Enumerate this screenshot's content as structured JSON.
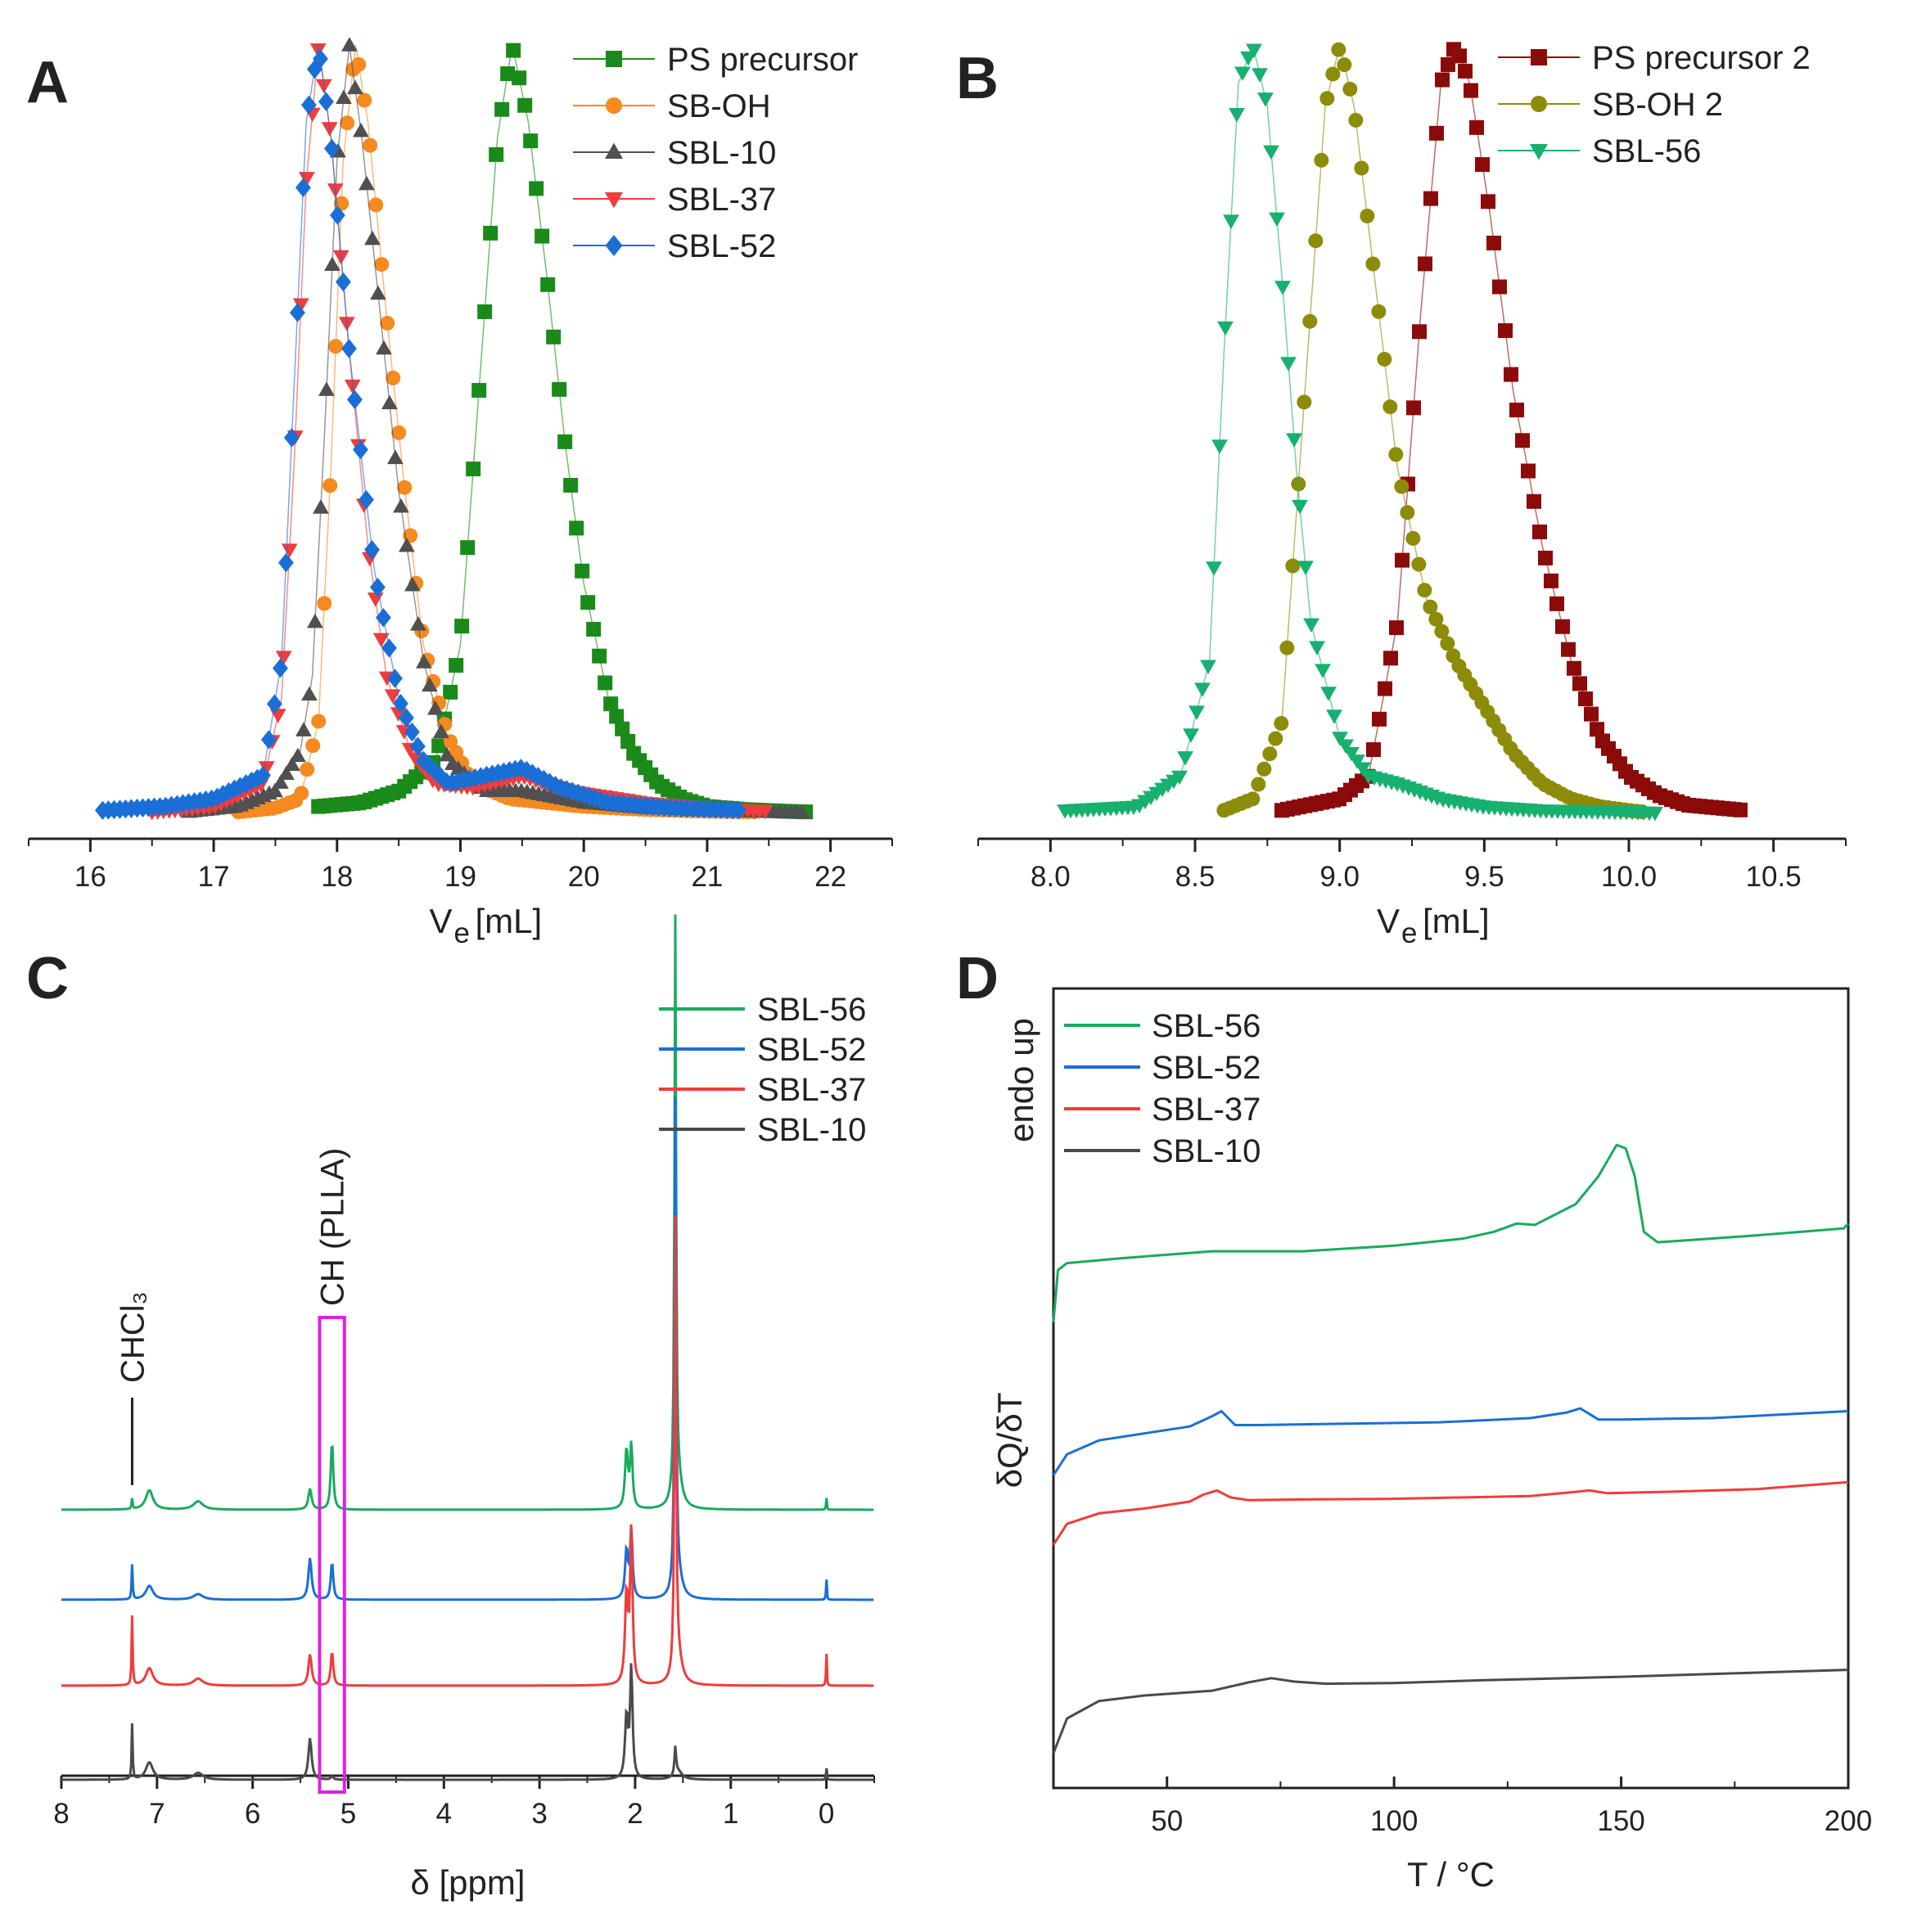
{
  "chart_data": [
    {
      "panel": "A",
      "type": "scatter",
      "xlabel": "V",
      "xlabel_subscript": "e",
      "xlabel_unit": "[mL]",
      "xlim": [
        15.5,
        22.5
      ],
      "ylim": [
        0,
        1
      ],
      "xticks": [
        16,
        17,
        18,
        19,
        20,
        21,
        22
      ],
      "legend_position": "top-right",
      "series": [
        {
          "name": "PS precursor",
          "color": "#1a8a1a",
          "marker": "square",
          "x": [
            17.85,
            18.2,
            18.5,
            18.8,
            19.0,
            19.15,
            19.3,
            19.42,
            19.55,
            19.7,
            19.85,
            20.0,
            20.2,
            20.4,
            20.6,
            20.8,
            21.0,
            21.3,
            21.6,
            21.8
          ],
          "y": [
            0.01,
            0.015,
            0.03,
            0.07,
            0.22,
            0.55,
            0.88,
            1.0,
            0.9,
            0.7,
            0.48,
            0.3,
            0.15,
            0.08,
            0.04,
            0.02,
            0.01,
            0.006,
            0.004,
            0.003
          ]
        },
        {
          "name": "SB-OH",
          "color": "#f58a1f",
          "marker": "circle",
          "x": [
            17.2,
            17.5,
            17.7,
            17.85,
            17.95,
            18.05,
            18.15,
            18.25,
            18.4,
            18.55,
            18.7,
            18.9,
            19.1,
            19.4,
            19.7,
            20.0,
            20.5,
            21.0,
            21.4
          ],
          "y": [
            0.003,
            0.008,
            0.02,
            0.12,
            0.45,
            0.85,
            1.0,
            0.9,
            0.65,
            0.42,
            0.22,
            0.1,
            0.04,
            0.02,
            0.015,
            0.01,
            0.006,
            0.004,
            0.003
          ]
        },
        {
          "name": "SBL-10",
          "color": "#505050",
          "marker": "triangle-up",
          "x": [
            16.8,
            17.2,
            17.5,
            17.7,
            17.8,
            17.9,
            18.0,
            18.1,
            18.2,
            18.35,
            18.5,
            18.7,
            18.9,
            19.2,
            19.5,
            20.0,
            20.5,
            21.0,
            21.5,
            21.8
          ],
          "y": [
            0.003,
            0.01,
            0.03,
            0.08,
            0.18,
            0.5,
            0.85,
            1.0,
            0.88,
            0.65,
            0.42,
            0.2,
            0.07,
            0.03,
            0.03,
            0.015,
            0.008,
            0.005,
            0.003,
            0.002
          ]
        },
        {
          "name": "SBL-37",
          "color": "#f03c3c",
          "marker": "triangle-down",
          "x": [
            16.5,
            17.0,
            17.4,
            17.55,
            17.65,
            17.75,
            17.85,
            17.95,
            18.1,
            18.25,
            18.4,
            18.6,
            18.8,
            19.1,
            19.5,
            19.9,
            20.5,
            21.0,
            21.5
          ],
          "y": [
            0.003,
            0.01,
            0.04,
            0.15,
            0.45,
            0.82,
            1.0,
            0.88,
            0.6,
            0.35,
            0.18,
            0.08,
            0.04,
            0.035,
            0.05,
            0.03,
            0.015,
            0.008,
            0.004
          ]
        },
        {
          "name": "SBL-52",
          "color": "#1a6fd6",
          "marker": "diamond",
          "x": [
            16.1,
            16.6,
            17.0,
            17.4,
            17.55,
            17.65,
            17.75,
            17.85,
            17.95,
            18.1,
            18.3,
            18.5,
            18.7,
            18.9,
            19.2,
            19.5,
            19.8,
            20.2,
            20.7,
            21.3
          ],
          "y": [
            0.005,
            0.01,
            0.02,
            0.05,
            0.2,
            0.55,
            0.9,
            1.0,
            0.88,
            0.6,
            0.32,
            0.15,
            0.07,
            0.04,
            0.05,
            0.06,
            0.035,
            0.015,
            0.008,
            0.005
          ]
        }
      ]
    },
    {
      "panel": "B",
      "type": "scatter",
      "xlabel": "V",
      "xlabel_subscript": "e",
      "xlabel_unit": "[mL]",
      "xlim": [
        7.75,
        10.75
      ],
      "ylim": [
        0,
        1
      ],
      "xticks": [
        "8.0",
        "8.5",
        "9.0",
        "9.5",
        "10.0",
        "10.5"
      ],
      "legend_position": "top-right",
      "series": [
        {
          "name": "PS precursor 2",
          "color": "#8b0a0a",
          "marker": "square",
          "x": [
            8.8,
            9.0,
            9.1,
            9.2,
            9.28,
            9.35,
            9.4,
            9.45,
            9.52,
            9.6,
            9.7,
            9.8,
            9.9,
            10.0,
            10.1,
            10.2,
            10.4
          ],
          "y": [
            0.005,
            0.02,
            0.05,
            0.25,
            0.65,
            0.95,
            1.0,
            0.95,
            0.78,
            0.55,
            0.35,
            0.2,
            0.1,
            0.05,
            0.025,
            0.012,
            0.005
          ]
        },
        {
          "name": "SB-OH 2",
          "color": "#8c8c0a",
          "marker": "circle",
          "x": [
            8.6,
            8.7,
            8.8,
            8.88,
            8.95,
            9.0,
            9.05,
            9.12,
            9.2,
            9.3,
            9.4,
            9.5,
            9.6,
            9.7,
            9.8,
            9.9,
            10.0,
            10.05
          ],
          "y": [
            0.005,
            0.02,
            0.12,
            0.55,
            0.92,
            1.0,
            0.92,
            0.7,
            0.45,
            0.28,
            0.2,
            0.14,
            0.08,
            0.04,
            0.02,
            0.01,
            0.005,
            0.003
          ]
        },
        {
          "name": "SBL-56",
          "color": "#17b070",
          "marker": "triangle-down",
          "x": [
            8.05,
            8.3,
            8.45,
            8.55,
            8.6,
            8.65,
            8.7,
            8.75,
            8.8,
            8.85,
            8.9,
            9.0,
            9.1,
            9.2,
            9.35,
            9.5,
            9.7,
            10.0,
            10.1
          ],
          "y": [
            0.005,
            0.01,
            0.05,
            0.2,
            0.6,
            0.95,
            1.0,
            0.92,
            0.7,
            0.45,
            0.25,
            0.1,
            0.05,
            0.04,
            0.02,
            0.01,
            0.005,
            0.003,
            0.002
          ]
        }
      ]
    },
    {
      "panel": "C",
      "type": "line",
      "xlabel": "δ [ppm]",
      "xlim": [
        8,
        -0.5
      ],
      "xticks": [
        8,
        7,
        6,
        5,
        4,
        3,
        2,
        1,
        0
      ],
      "annotations": [
        "CHCl₃",
        "CH (PLLA)"
      ],
      "legend_position": "top-right",
      "peak_positions_ppm": [
        7.26,
        7.08,
        6.57,
        5.4,
        5.17,
        2.09,
        2.04,
        1.58,
        1.55,
        0.0
      ],
      "series": [
        {
          "name": "SBL-56",
          "color": "#1aaa5e",
          "intensities": [
            0.15,
            0.28,
            0.12,
            0.3,
            1.0,
            0.85,
            0.9,
            8.3,
            0.35,
            0.2
          ]
        },
        {
          "name": "SBL-52",
          "color": "#1a6fd6",
          "intensities": [
            0.5,
            0.2,
            0.08,
            0.6,
            0.55,
            0.7,
            1.0,
            7.0,
            0.3,
            0.35
          ]
        },
        {
          "name": "SBL-37",
          "color": "#f03c3c",
          "intensities": [
            1.0,
            0.25,
            0.1,
            0.45,
            0.5,
            1.3,
            2.2,
            6.5,
            0.35,
            0.55
          ]
        },
        {
          "name": "SBL-10",
          "color": "#4a4a4a",
          "intensities": [
            0.8,
            0.25,
            0.1,
            0.6,
            0.05,
            0.9,
            1.6,
            0.4,
            0.12,
            0.2
          ]
        }
      ]
    },
    {
      "panel": "D",
      "type": "line",
      "xlabel": "T / °C",
      "ylabel": "δQ/δT",
      "annotation": "endo up",
      "xlim": [
        25,
        200
      ],
      "xticks": [
        50,
        100,
        150,
        200
      ],
      "legend_position": "top-left",
      "series": [
        {
          "name": "SBL-56",
          "color": "#1aaa5e",
          "x": [
            25,
            26,
            28,
            40,
            60,
            80,
            100,
            115,
            122,
            127,
            131,
            140,
            145,
            149,
            151,
            153,
            155,
            158,
            165,
            180,
            199,
            200
          ],
          "y": [
            2.2,
            2.95,
            3.05,
            3.12,
            3.22,
            3.22,
            3.3,
            3.4,
            3.5,
            3.62,
            3.6,
            3.9,
            4.3,
            4.75,
            4.7,
            4.3,
            3.5,
            3.35,
            3.38,
            3.45,
            3.55,
            3.62
          ]
        },
        {
          "name": "SBL-52",
          "color": "#1a6fd6",
          "x": [
            25,
            28,
            35,
            45,
            55,
            60,
            62,
            65,
            70,
            90,
            110,
            130,
            138,
            141,
            145,
            150,
            170,
            200
          ],
          "y": [
            0.0,
            0.3,
            0.5,
            0.6,
            0.7,
            0.85,
            0.92,
            0.72,
            0.72,
            0.74,
            0.76,
            0.82,
            0.9,
            0.96,
            0.8,
            0.8,
            0.82,
            0.92
          ]
        },
        {
          "name": "SBL-37",
          "color": "#f03c3c",
          "x": [
            25,
            28,
            35,
            45,
            55,
            58,
            61,
            64,
            68,
            80,
            100,
            130,
            140,
            143,
            147,
            160,
            180,
            200
          ],
          "y": [
            -1.0,
            -0.7,
            -0.55,
            -0.48,
            -0.38,
            -0.28,
            -0.22,
            -0.32,
            -0.36,
            -0.35,
            -0.34,
            -0.3,
            -0.24,
            -0.22,
            -0.26,
            -0.24,
            -0.2,
            -0.1
          ]
        },
        {
          "name": "SBL-10",
          "color": "#4a4a4a",
          "x": [
            25,
            28,
            35,
            45,
            60,
            68,
            73,
            78,
            85,
            100,
            120,
            150,
            180,
            200
          ],
          "y": [
            -4.0,
            -3.5,
            -3.25,
            -3.17,
            -3.1,
            -2.98,
            -2.92,
            -2.97,
            -3.0,
            -2.99,
            -2.95,
            -2.9,
            -2.84,
            -2.8
          ]
        }
      ]
    }
  ]
}
